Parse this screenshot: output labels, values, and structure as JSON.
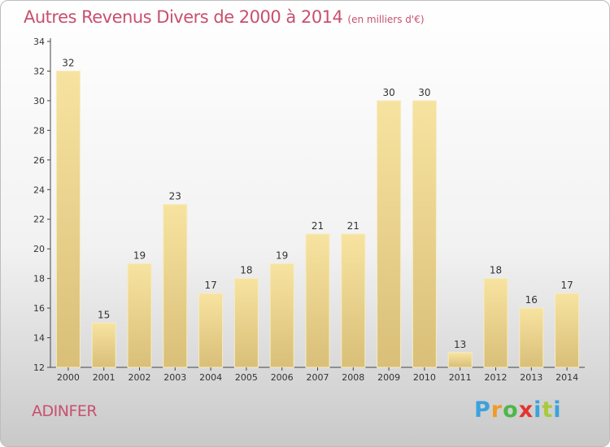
{
  "header": {
    "title": "Autres Revenus Divers de 2000 à 2014",
    "unit": "(en milliers d'€)"
  },
  "footer": {
    "commune": "ADINFER",
    "logo_parts": [
      "P",
      "r",
      "o",
      "x",
      "i",
      "t",
      "i"
    ]
  },
  "colors": {
    "title": "#c8506e",
    "bar_light": "#f7e3a0",
    "bar_dark": "#d9bf78"
  },
  "chart_data": {
    "type": "bar",
    "title": "Autres Revenus Divers de 2000 à 2014",
    "subtitle": "(en milliers d'€)",
    "categories": [
      "2000",
      "2001",
      "2002",
      "2003",
      "2004",
      "2005",
      "2006",
      "2007",
      "2008",
      "2009",
      "2010",
      "2011",
      "2012",
      "2013",
      "2014"
    ],
    "values": [
      32,
      15,
      19,
      23,
      17,
      18,
      19,
      21,
      21,
      30,
      30,
      13,
      18,
      16,
      17
    ],
    "ylim": [
      12,
      34
    ],
    "yticks": [
      12,
      14,
      16,
      18,
      20,
      22,
      24,
      26,
      28,
      30,
      32,
      34
    ],
    "grid": false,
    "legend": "none"
  }
}
